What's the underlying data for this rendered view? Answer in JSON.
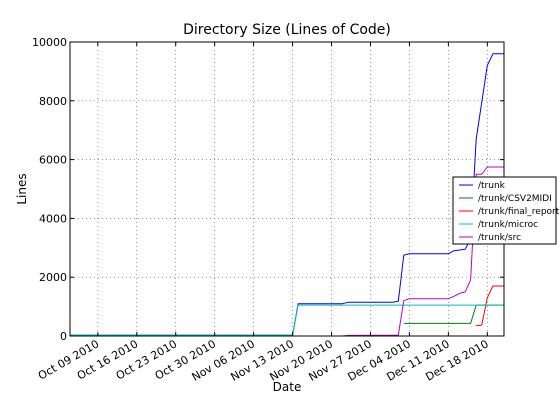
{
  "chart_data": {
    "type": "line",
    "title": "Directory Size (Lines of Code)",
    "xlabel": "Date",
    "ylabel": "Lines",
    "x_axis": "date",
    "xlim": [
      "2010-10-04",
      "2010-12-21"
    ],
    "ylim": [
      0,
      10000
    ],
    "grid": true,
    "legend_position": "right",
    "x_ticks": [
      "2010-10-09",
      "2010-10-16",
      "2010-10-23",
      "2010-10-30",
      "2010-11-06",
      "2010-11-13",
      "2010-11-20",
      "2010-11-27",
      "2010-12-04",
      "2010-12-11",
      "2010-12-18"
    ],
    "x_tick_labels": [
      "Oct 09 2010",
      "Oct 16 2010",
      "Oct 23 2010",
      "Oct 30 2010",
      "Nov 06 2010",
      "Nov 13 2010",
      "Nov 20 2010",
      "Nov 27 2010",
      "Dec 04 2010",
      "Dec 11 2010",
      "Dec 18 2010"
    ],
    "y_ticks": [
      0,
      2000,
      4000,
      6000,
      8000,
      10000
    ],
    "y_tick_labels": [
      "0",
      "2000",
      "4000",
      "6000",
      "8000",
      "10000"
    ],
    "series": [
      {
        "name": "/trunk",
        "color": "#0000ff",
        "points": [
          [
            "2010-10-04",
            30
          ],
          [
            "2010-11-13",
            30
          ],
          [
            "2010-11-14",
            1100
          ],
          [
            "2010-11-22",
            1100
          ],
          [
            "2010-11-23",
            1150
          ],
          [
            "2010-12-01",
            1150
          ],
          [
            "2010-12-02",
            1180
          ],
          [
            "2010-12-03",
            2750
          ],
          [
            "2010-12-04",
            2800
          ],
          [
            "2010-12-11",
            2800
          ],
          [
            "2010-12-12",
            2900
          ],
          [
            "2010-12-14",
            2950
          ],
          [
            "2010-12-15",
            3300
          ],
          [
            "2010-12-16",
            6700
          ],
          [
            "2010-12-18",
            9200
          ],
          [
            "2010-12-19",
            9600
          ],
          [
            "2010-12-21",
            9600
          ]
        ]
      },
      {
        "name": "/trunk/CSV2MIDI",
        "color": "#008000",
        "points": [
          [
            "2010-12-03",
            430
          ],
          [
            "2010-12-15",
            430
          ],
          [
            "2010-12-16",
            1050
          ],
          [
            "2010-12-21",
            1050
          ]
        ]
      },
      {
        "name": "/trunk/final_report",
        "color": "#ff0000",
        "points": [
          [
            "2010-12-16",
            350
          ],
          [
            "2010-12-17",
            370
          ],
          [
            "2010-12-18",
            1300
          ],
          [
            "2010-12-19",
            1700
          ],
          [
            "2010-12-21",
            1700
          ]
        ]
      },
      {
        "name": "/trunk/microc",
        "color": "#00bfbf",
        "points": [
          [
            "2010-10-04",
            30
          ],
          [
            "2010-11-13",
            30
          ],
          [
            "2010-11-14",
            1050
          ],
          [
            "2010-12-21",
            1050
          ]
        ]
      },
      {
        "name": "/trunk/src",
        "color": "#bf00bf",
        "points": [
          [
            "2010-11-13",
            0
          ],
          [
            "2010-11-22",
            0
          ],
          [
            "2010-11-23",
            20
          ],
          [
            "2010-12-02",
            30
          ],
          [
            "2010-12-03",
            1200
          ],
          [
            "2010-12-04",
            1270
          ],
          [
            "2010-12-11",
            1270
          ],
          [
            "2010-12-12",
            1350
          ],
          [
            "2010-12-13",
            1450
          ],
          [
            "2010-12-14",
            1500
          ],
          [
            "2010-12-15",
            1900
          ],
          [
            "2010-12-16",
            5500
          ],
          [
            "2010-12-17",
            5500
          ],
          [
            "2010-12-18",
            5750
          ],
          [
            "2010-12-21",
            5750
          ]
        ]
      }
    ]
  }
}
